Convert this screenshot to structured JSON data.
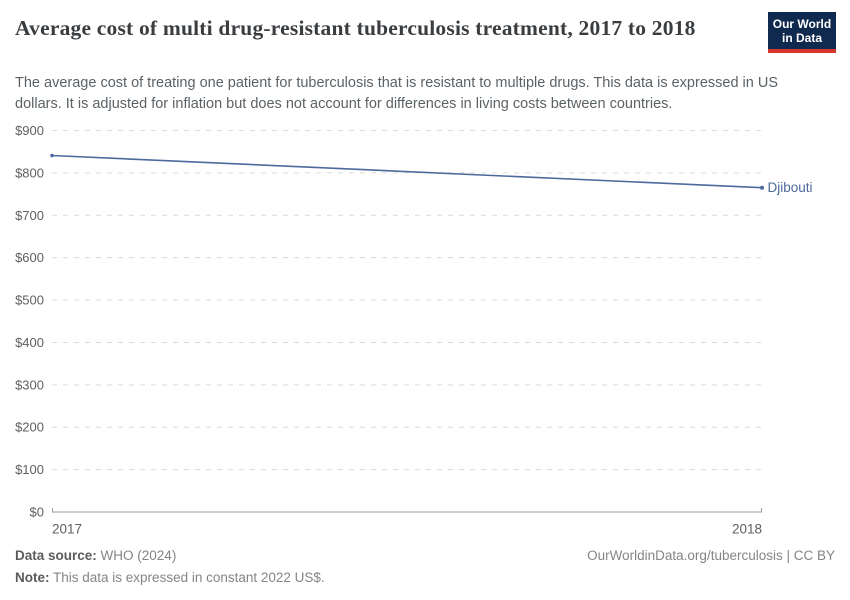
{
  "header": {
    "title": "Average cost of multi drug-resistant tuberculosis treatment, 2017 to 2018",
    "subtitle": "The average cost of treating one patient for tuberculosis that is resistant to multiple drugs. This data is expressed in US dollars. It is adjusted for inflation but does not account for differences in living costs between countries."
  },
  "logo": {
    "line1": "Our World",
    "line2": "in Data",
    "bg_color": "#0f2a4e",
    "accent_color": "#d8352f"
  },
  "chart_data": {
    "type": "line",
    "title": "Average cost of multi drug-resistant tuberculosis treatment, 2017 to 2018",
    "x": [
      2017,
      2018
    ],
    "xtick_labels": [
      "2017",
      "2018"
    ],
    "series": [
      {
        "name": "Djibouti",
        "color": "#4c6a9c",
        "values": [
          841,
          765
        ]
      }
    ],
    "ylim": [
      0,
      900
    ],
    "ytick_values": [
      0,
      100,
      200,
      300,
      400,
      500,
      600,
      700,
      800,
      900
    ],
    "ytick_labels": [
      "$0",
      "$100",
      "$200",
      "$300",
      "$400",
      "$500",
      "$600",
      "$700",
      "$800",
      "$900"
    ],
    "grid": "horizontal-dashed",
    "legend": "end-of-line-label"
  },
  "footer": {
    "datasource_label": "Data source:",
    "datasource_value": "WHO (2024)",
    "note_label": "Note:",
    "note_value": "This data is expressed in constant 2022 US$.",
    "citation": "OurWorldinData.org/tuberculosis | CC BY"
  },
  "colors": {
    "line": "#4c6a9c",
    "grid": "#dcdcdc",
    "axis": "#9a9a9a",
    "tick_text": "#606060",
    "title_text": "#3a3d40",
    "subtitle_text": "#5b6266"
  }
}
